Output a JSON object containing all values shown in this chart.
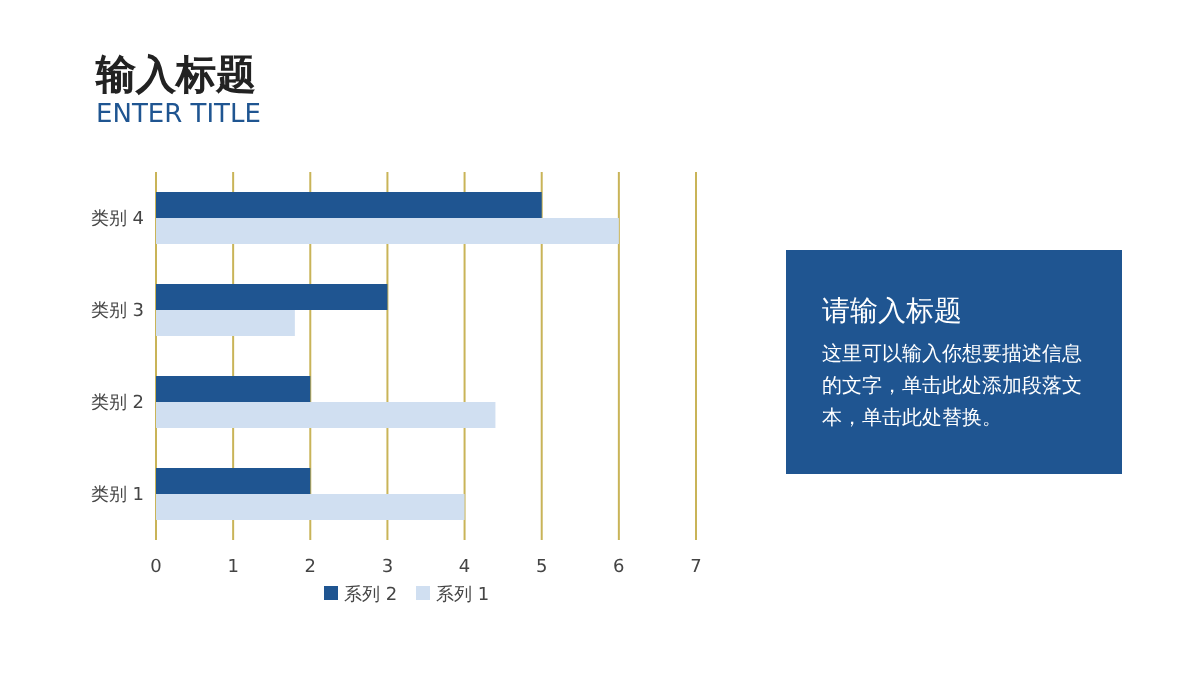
{
  "chart_data": [
    {
      "type": "bar",
      "title": "输入标题",
      "subtitle": "ENTER TITLE",
      "orientation": "horizontal",
      "categories": [
        "类别 4",
        "类别 3",
        "类别 2",
        "类别 1"
      ],
      "series": [
        {
          "name": "系列 2",
          "color": "#1f5591",
          "values": [
            5,
            3,
            2,
            2
          ]
        },
        {
          "name": "系列 1",
          "color": "#d0dff1",
          "values": [
            6,
            1.8,
            4.4,
            4
          ]
        }
      ],
      "xlim": [
        0,
        7
      ],
      "xticks": [
        0,
        1,
        2,
        3,
        4,
        5,
        6,
        7
      ],
      "grid": "x",
      "legend": "bottom"
    },
    {
      "type": "other",
      "title": "请输入标题",
      "annotations": [
        "这里可以输入你想要描述信息的文字，单击此处添加段落文本，单击此处替换。"
      ]
    }
  ]
}
